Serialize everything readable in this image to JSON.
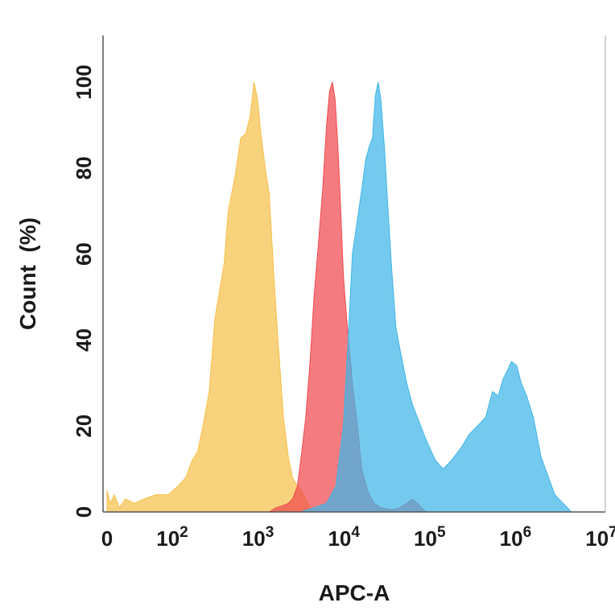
{
  "chart_data": {
    "type": "area",
    "title": "",
    "xlabel": "APC-A",
    "ylabel": "Count  (%)",
    "x_scale": "biexponential",
    "xlim": [
      0,
      10000000
    ],
    "ylim": [
      0,
      110
    ],
    "grid": false,
    "legend": "none",
    "y_ticks": [
      {
        "value": 0,
        "label": "0"
      },
      {
        "value": 20,
        "label": "20"
      },
      {
        "value": 40,
        "label": "40"
      },
      {
        "value": 60,
        "label": "60"
      },
      {
        "value": 80,
        "label": "80"
      },
      {
        "value": 100,
        "label": "100"
      }
    ],
    "x_ticks": [
      {
        "value": 0,
        "base": "0",
        "exp": ""
      },
      {
        "value": 100,
        "base": "10",
        "exp": "2"
      },
      {
        "value": 1000,
        "base": "10",
        "exp": "3"
      },
      {
        "value": 10000,
        "base": "10",
        "exp": "4"
      },
      {
        "value": 100000,
        "base": "10",
        "exp": "5"
      },
      {
        "value": 1000000,
        "base": "10",
        "exp": "6"
      },
      {
        "value": 10000000,
        "base": "10",
        "exp": "7"
      }
    ],
    "series": [
      {
        "color": "#f5c04a",
        "x": [
          0,
          5,
          12,
          20,
          30,
          45,
          60,
          80,
          100,
          130,
          160,
          190,
          220,
          260,
          300,
          350,
          400,
          450,
          500,
          600,
          700,
          800,
          900,
          1000,
          1100,
          1200,
          1350,
          1500,
          1700,
          1900,
          2200,
          2500,
          2800,
          3200,
          3600,
          4000,
          4500,
          5000
        ],
        "y": [
          5,
          2,
          4,
          1,
          3,
          2,
          3,
          4,
          4,
          6,
          8,
          12,
          14,
          21,
          28,
          45,
          52,
          58,
          70,
          78,
          87,
          88,
          92,
          100,
          96,
          88,
          80,
          74,
          55,
          40,
          22,
          13,
          8,
          6,
          5,
          3,
          1,
          0
        ]
      },
      {
        "color": "#f04a4f",
        "x": [
          1500,
          1800,
          2200,
          2500,
          2800,
          3200,
          3600,
          4000,
          4500,
          5000,
          5600,
          6300,
          7000,
          7600,
          8200,
          8800,
          9500,
          10000,
          11000,
          12000,
          14000,
          16000,
          18000,
          21000,
          25000,
          30000,
          40000,
          50000,
          60000,
          70000,
          80000,
          90000,
          100000
        ],
        "y": [
          0,
          1,
          1.5,
          2,
          3,
          6,
          14,
          22,
          35,
          50,
          62,
          75,
          90,
          98,
          100,
          96,
          85,
          75,
          55,
          45,
          30,
          20,
          10,
          5,
          2,
          1,
          0.5,
          1,
          2,
          3,
          2,
          1,
          0
        ]
      },
      {
        "color": "#3eb6e8",
        "x": [
          3500,
          5000,
          7000,
          9000,
          11000,
          12500,
          14000,
          16000,
          18000,
          20000,
          22000,
          24000,
          26000,
          28000,
          30000,
          33000,
          36000,
          40000,
          45000,
          50000,
          60000,
          70000,
          80000,
          100000,
          130000,
          160000,
          200000,
          260000,
          320000,
          400000,
          500000,
          600000,
          700000,
          800000,
          900000,
          1000000,
          1150000,
          1300000,
          1500000,
          1800000,
          2200000,
          2700000,
          3200000,
          4000000,
          5000000
        ],
        "y": [
          0,
          1,
          2,
          6,
          20,
          40,
          60,
          68,
          75,
          82,
          85,
          87,
          97,
          100,
          96,
          85,
          72,
          57,
          43,
          38,
          30,
          25,
          22,
          17,
          12,
          10,
          12,
          15,
          18,
          20,
          22,
          28,
          27,
          31,
          33,
          35,
          34,
          30,
          27,
          22,
          13,
          8,
          4,
          2,
          0
        ]
      }
    ]
  }
}
